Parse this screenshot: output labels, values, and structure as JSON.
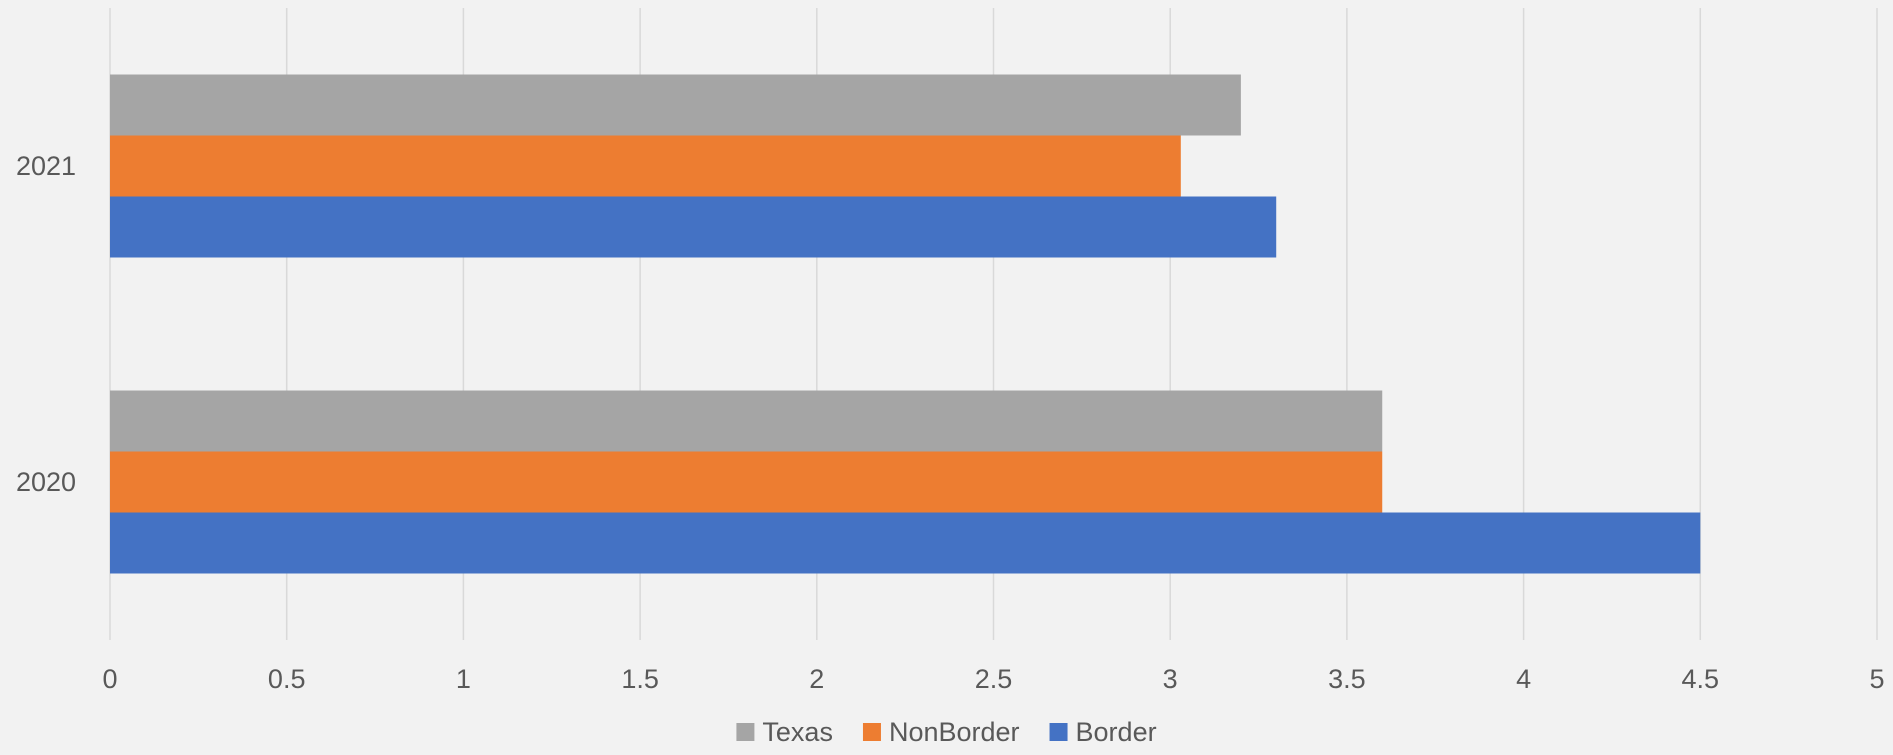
{
  "chart_data": {
    "type": "bar",
    "orientation": "horizontal",
    "categories": [
      "2021",
      "2020"
    ],
    "series": [
      {
        "name": "Texas",
        "color": "#a5a5a5",
        "values": [
          3.2,
          3.6
        ]
      },
      {
        "name": "NonBorder",
        "color": "#ed7d31",
        "values": [
          3.03,
          3.6
        ]
      },
      {
        "name": "Border",
        "color": "#4472c4",
        "values": [
          3.3,
          4.5
        ]
      }
    ],
    "xlim": [
      0,
      5
    ],
    "xticks": [
      "0",
      "0.5",
      "1",
      "1.5",
      "2",
      "2.5",
      "3",
      "3.5",
      "4",
      "4.5",
      "5"
    ],
    "title": "",
    "xlabel": "",
    "ylabel": "",
    "grid": true,
    "legend_position": "bottom"
  }
}
